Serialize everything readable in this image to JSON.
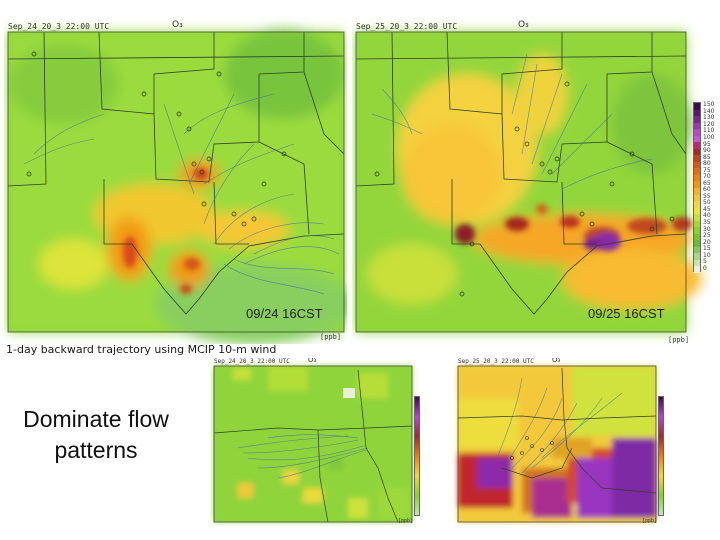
{
  "panels": {
    "top_left": {
      "header": "Sep_24_20_3  22:00 UTC",
      "species": "O₃",
      "stamp": "09/24 16CST",
      "unit": "[ppb]"
    },
    "top_right": {
      "header": "Sep_25_20_3  22:00 UTC",
      "species": "O₃",
      "stamp": "09/25 16CST",
      "unit": "[ppb]"
    },
    "bottom_left": {
      "header": "Sep_24_20_3  22:00 UTC",
      "species": "O₃",
      "unit": "[ppb]"
    },
    "bottom_right": {
      "header": "Sep_25_20_3  22:00 UTC",
      "species": "O₃",
      "unit": "[ppb]"
    }
  },
  "colorbar": {
    "ticks": [
      "150",
      "140",
      "130",
      "120",
      "110",
      "100",
      "95",
      "90",
      "85",
      "80",
      "75",
      "70",
      "65",
      "60",
      "55",
      "50",
      "45",
      "40",
      "35",
      "30",
      "25",
      "20",
      "15",
      "10",
      "5",
      "0"
    ],
    "colors": [
      "#3d0a4d",
      "#5a1670",
      "#7a2596",
      "#9c36b8",
      "#b846cf",
      "#cc52dd",
      "#c0286d",
      "#a52a2a",
      "#c24420",
      "#d65818",
      "#e86d12",
      "#f07e10",
      "#f8930f",
      "#fbb02a",
      "#f8c437",
      "#f4d53f",
      "#e8e43c",
      "#c6e03a",
      "#a4d934",
      "#88d12e",
      "#74c72c",
      "#68bd38",
      "#88c95f",
      "#a5d78a",
      "#c3e6b3",
      "#e3f3db"
    ]
  },
  "captions": {
    "trajectory": "1-day backward trajectory using  MCIP 10-m wind",
    "flow_line1": "Dominate flow",
    "flow_line2": "patterns"
  }
}
